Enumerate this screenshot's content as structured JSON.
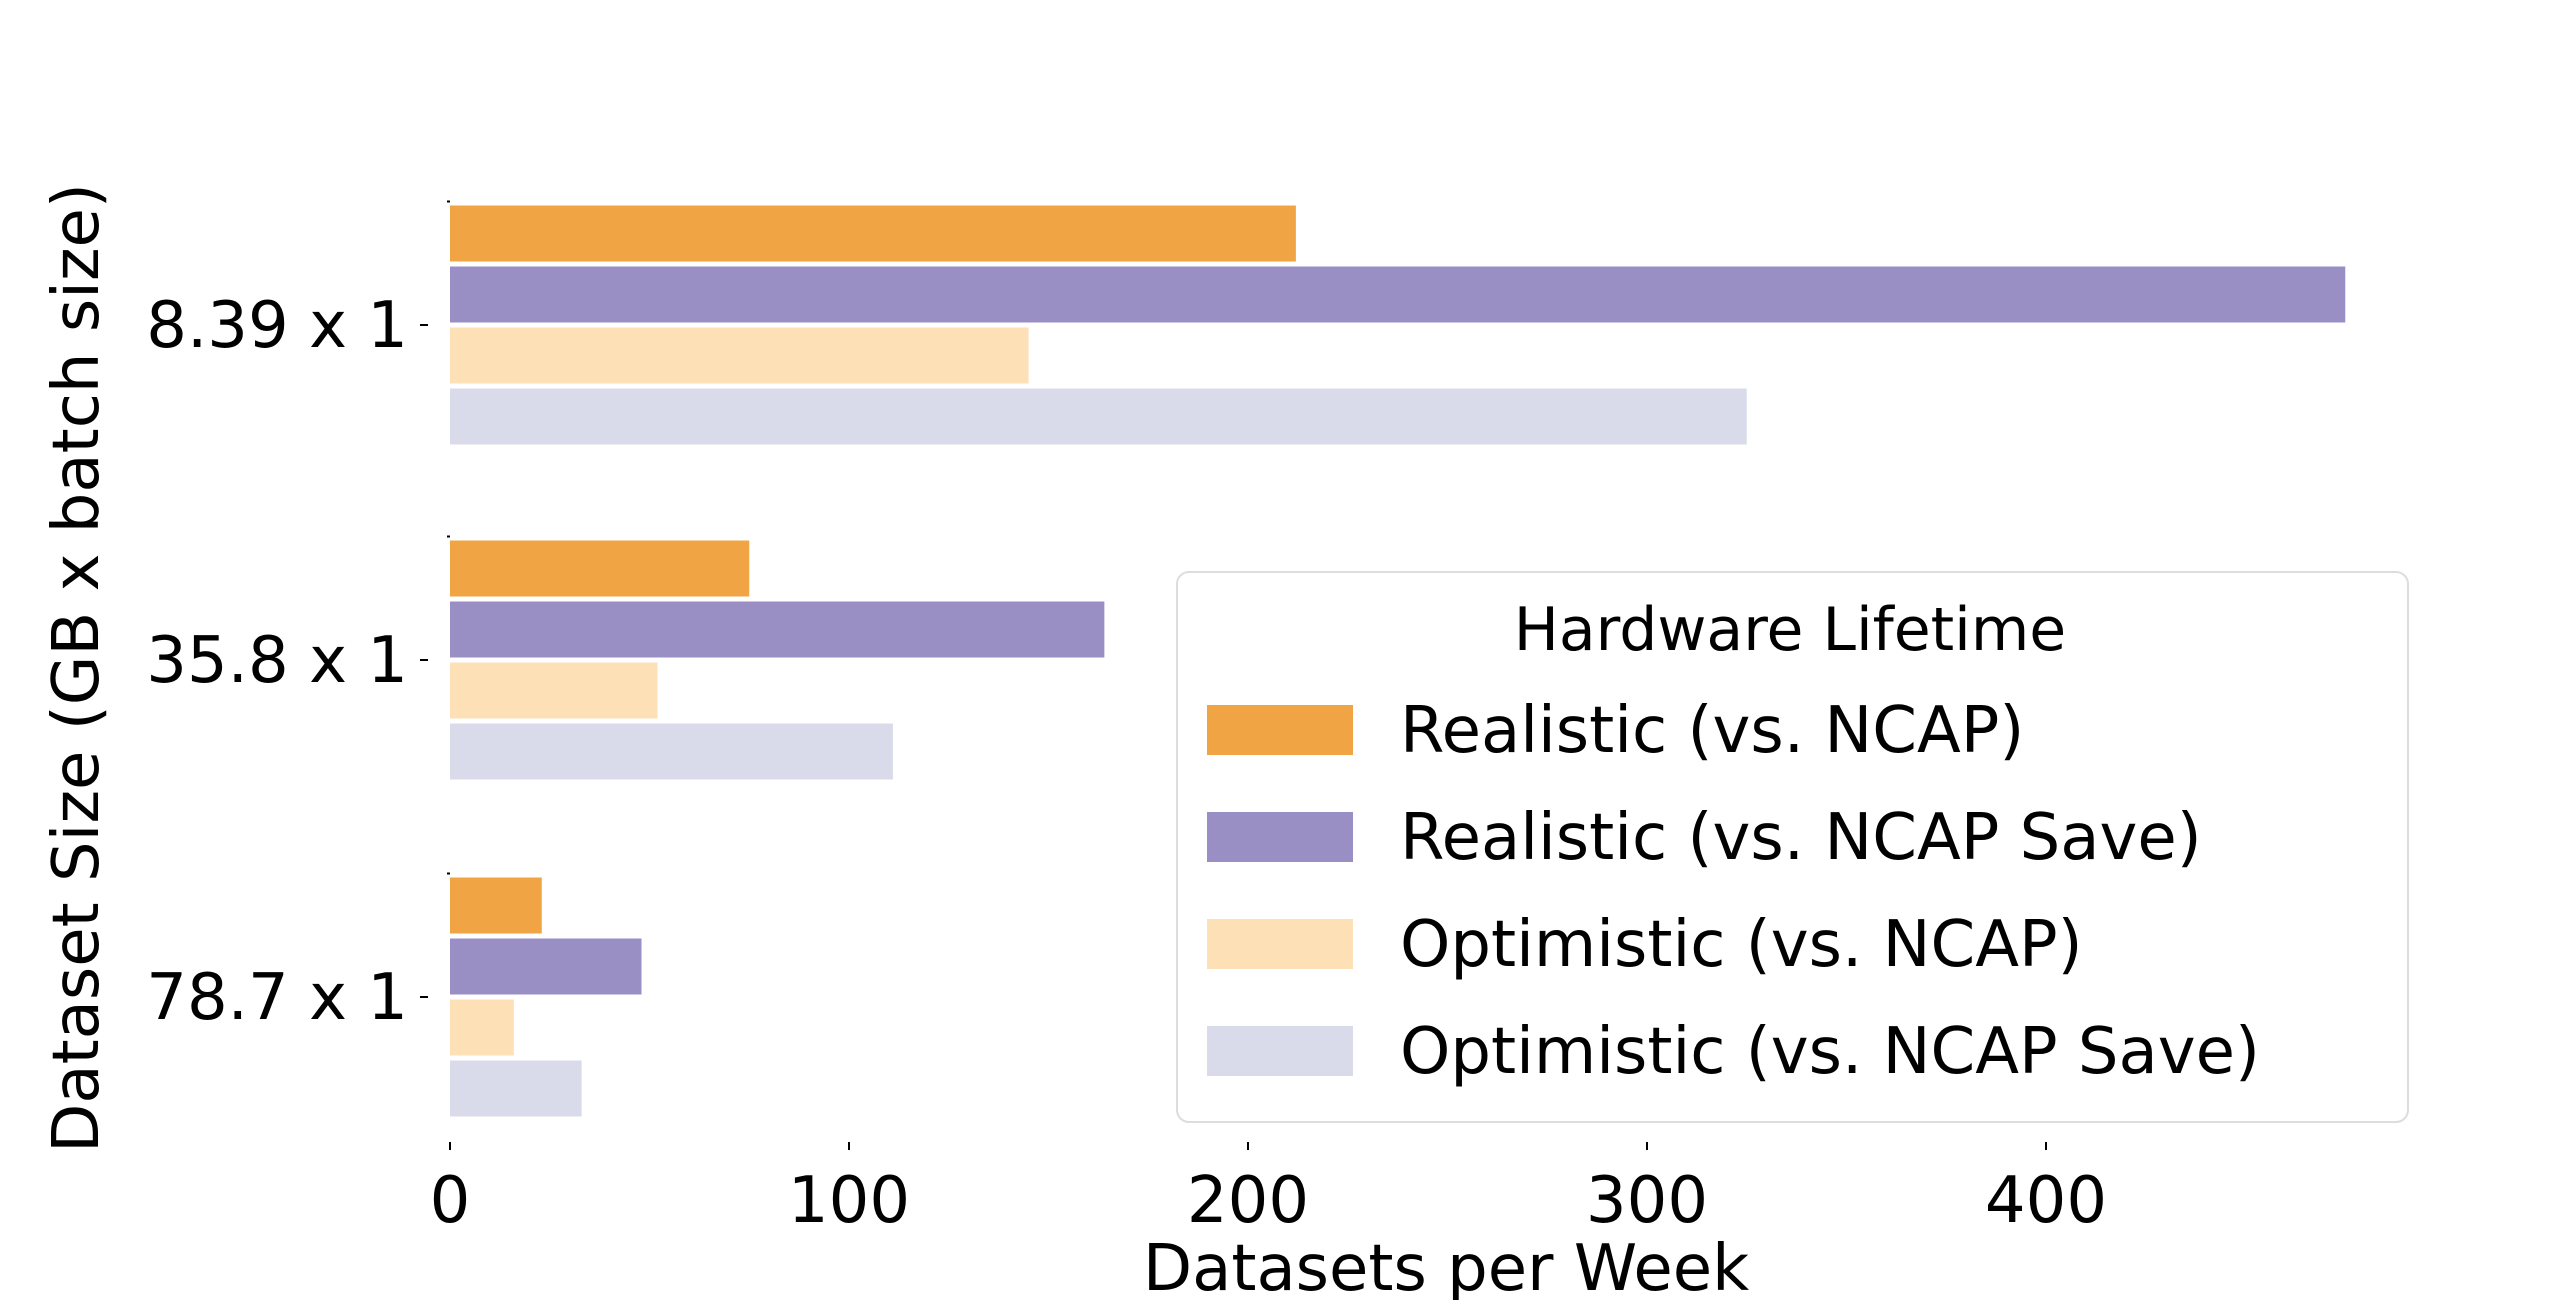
{
  "chart_data": {
    "type": "bar",
    "orientation": "horizontal",
    "title": "",
    "xlabel": "Datasets per Week",
    "ylabel": "Dataset Size (GB x batch size)",
    "categories": [
      "8.39 x 1",
      "35.8 x 1",
      "78.7 x 1"
    ],
    "xlim": [
      0,
      490
    ],
    "xticks": [
      0,
      100,
      200,
      300,
      400
    ],
    "grid": false,
    "legend": {
      "title": "Hardware Lifetime",
      "placement": "lower-right"
    },
    "series": [
      {
        "name": "Realistic (vs. NCAP)",
        "color": "#f0a443",
        "values": [
          212,
          75,
          23
        ]
      },
      {
        "name": "Realistic (vs. NCAP Save)",
        "color": "#998fc5",
        "values": [
          475,
          164,
          48
        ]
      },
      {
        "name": "Optimistic (vs. NCAP)",
        "color": "#fde0b6",
        "values": [
          145,
          52,
          16
        ]
      },
      {
        "name": "Optimistic (vs. NCAP Save)",
        "color": "#d9dbeb",
        "values": [
          325,
          111,
          33
        ]
      }
    ]
  }
}
